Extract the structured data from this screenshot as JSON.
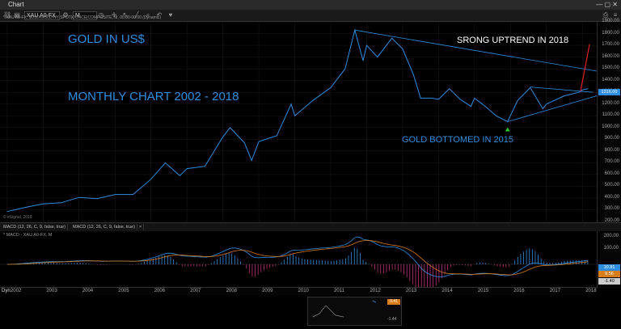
{
  "window": {
    "title": "Chart"
  },
  "toolbar": {
    "symbol": "XAU A0-FX",
    "interval": "M"
  },
  "chart_header": "* XAU A0-FX, $USD/GOLD NY SPOT|OUNCE|COMPOSITE, M, 00:00-00:00 (Dynamic)",
  "watermark": "© eSignal, 2018",
  "annotations": {
    "gold_title": "GOLD IN US$",
    "monthly": "MONTHLY  CHART  2002 - 2018",
    "uptrend": "SRONG UPTREND IN 2018",
    "bottom": "GOLD BOTTOMED IN 2015"
  },
  "y_labels": [
    "1900.00",
    "1800.00",
    "1700.00",
    "1600.00",
    "1500.00",
    "1400.00",
    "1300.00",
    "1200.00",
    "1100.00",
    "1000.00",
    "900.00",
    "800.00",
    "700.00",
    "600.00",
    "500.00",
    "400.00",
    "300.00",
    "200.00"
  ],
  "price_tag": "1316.00",
  "macd": {
    "tab1": "MACD (12, 26, C, 9, false, true)",
    "tab2": "MACD (12, 26, C, 9, false, true)",
    "label": "* MACD - XAU A0-FX, M",
    "y_labels": [
      "200.00",
      "100.00",
      "",
      "-100.00"
    ],
    "tags": [
      "10.91",
      "9.56",
      "-1.40"
    ]
  },
  "x_labels": [
    "2002",
    "2003",
    "2004",
    "2005",
    "2006",
    "2007",
    "2008",
    "2009",
    "2010",
    "2011",
    "2012",
    "2013",
    "2014",
    "2015",
    "2016",
    "2017",
    "2018"
  ],
  "dyn_label": "Dyn",
  "mini_tags": [
    "0.41",
    "-1.44"
  ],
  "colors": {
    "price": "#2f8ee0",
    "accent": "#2f8ee0",
    "up_arrow": "#e02020",
    "bottom_arrow": "#2ec52e"
  },
  "chart_data": {
    "type": "line",
    "title": "",
    "xlabel": "",
    "ylabel": "",
    "x": [
      2002.0,
      2002.5,
      2003.0,
      2003.5,
      2004.0,
      2004.5,
      2005.0,
      2005.5,
      2006.0,
      2006.4,
      2006.8,
      2007.0,
      2007.5,
      2008.0,
      2008.2,
      2008.6,
      2008.8,
      2009.0,
      2009.5,
      2009.9,
      2010.0,
      2010.5,
      2011.0,
      2011.4,
      2011.67,
      2011.9,
      2012.0,
      2012.3,
      2012.7,
      2013.0,
      2013.3,
      2013.5,
      2013.8,
      2014.0,
      2014.3,
      2014.6,
      2014.9,
      2015.0,
      2015.3,
      2015.6,
      2015.92,
      2016.2,
      2016.55,
      2016.9,
      2017.0,
      2017.5,
      2017.9,
      2018.0,
      2018.15
    ],
    "y": [
      285,
      320,
      350,
      360,
      405,
      395,
      430,
      430,
      560,
      700,
      590,
      650,
      670,
      920,
      1000,
      870,
      720,
      880,
      930,
      1200,
      1100,
      1230,
      1340,
      1500,
      1830,
      1570,
      1700,
      1600,
      1760,
      1670,
      1450,
      1250,
      1250,
      1240,
      1330,
      1240,
      1180,
      1250,
      1180,
      1100,
      1050,
      1230,
      1340,
      1160,
      1200,
      1270,
      1300,
      1320,
      1330
    ],
    "ylim": [
      200,
      1900
    ],
    "xlim": [
      2001.8,
      2018.4
    ]
  }
}
